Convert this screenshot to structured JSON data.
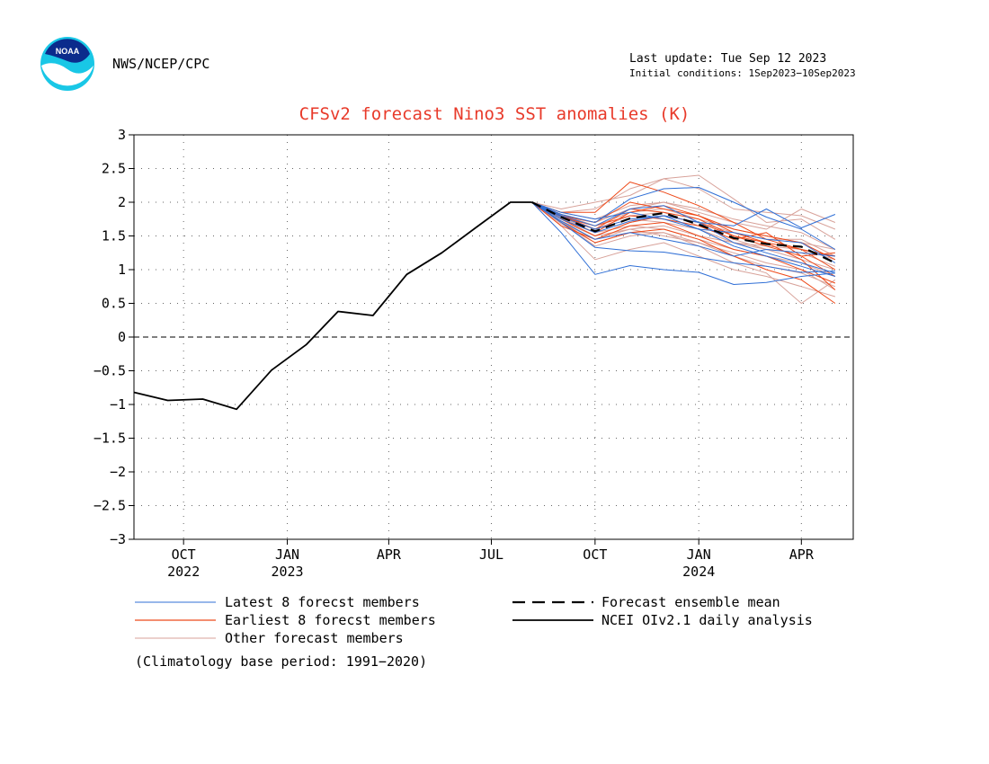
{
  "header": {
    "org": "NWS/NCEP/CPC",
    "last_update": "Last update: Tue Sep 12 2023",
    "initial_conditions": "Initial conditions: 1Sep2023−10Sep2023",
    "logo_text": "NOAA"
  },
  "footer": {
    "climatology": "(Climatology base period: 1991−2020)"
  },
  "colors": {
    "title": "#e83a2a",
    "latest": "#2f6fd6",
    "earliest": "#ee4a1a",
    "other": "#d8a29a",
    "analysis": "#000000",
    "mean": "#000000"
  },
  "chart_data": {
    "type": "line",
    "title": "CFSv2 forecast Nino3 SST anomalies (K)",
    "xlabel": "",
    "ylabel": "",
    "ylim": [
      -3,
      3
    ],
    "yticks": [
      "3",
      "2.5",
      "2",
      "1.5",
      "1",
      "0.5",
      "0",
      "−0.5",
      "−1",
      "−1.5",
      "−2",
      "−2.5",
      "−3"
    ],
    "xticks": [
      {
        "month": "2022-10",
        "label": "OCT",
        "year": "2022"
      },
      {
        "month": "2023-01",
        "label": "JAN",
        "year": "2023"
      },
      {
        "month": "2023-04",
        "label": "APR",
        "year": ""
      },
      {
        "month": "2023-07",
        "label": "JUL",
        "year": ""
      },
      {
        "month": "2023-10",
        "label": "OCT",
        "year": ""
      },
      {
        "month": "2024-01",
        "label": "JAN",
        "year": "2024"
      },
      {
        "month": "2024-04",
        "label": "APR",
        "year": ""
      }
    ],
    "xrange": [
      "2022-09-01",
      "2024-05-31"
    ],
    "grid": true,
    "zero_line": true,
    "legend": [
      {
        "label": "Latest 8 forecst members",
        "style": "latest"
      },
      {
        "label": "Earliest 8 forecst members",
        "style": "earliest"
      },
      {
        "label": "Other forecast members",
        "style": "other"
      },
      {
        "label": "Forecast ensemble mean",
        "style": "mean"
      },
      {
        "label": "NCEI OIv2.1 daily analysis",
        "style": "analysis"
      }
    ],
    "analysis": {
      "name": "NCEI OIv2.1 daily analysis",
      "x": [
        "2022-09-01",
        "2022-10-01",
        "2022-11-01",
        "2022-12-01",
        "2023-01-01",
        "2023-02-01",
        "2023-03-01",
        "2023-04-01",
        "2023-05-01",
        "2023-06-01",
        "2023-07-01",
        "2023-08-01",
        "2023-08-20"
      ],
      "values": [
        -0.82,
        -0.94,
        -0.92,
        -1.07,
        -0.49,
        -0.11,
        0.38,
        0.32,
        0.93,
        1.25,
        1.62,
        2.0,
        2.0
      ]
    },
    "forecast_x": [
      "2023-08-20",
      "2023-09-15",
      "2023-10-15",
      "2023-11-15",
      "2023-12-15",
      "2024-01-15",
      "2024-02-15",
      "2024-03-15",
      "2024-04-15",
      "2024-05-15"
    ],
    "ensemble_mean": {
      "name": "Forecast ensemble mean",
      "values": [
        2.0,
        1.78,
        1.57,
        1.76,
        1.84,
        1.67,
        1.47,
        1.38,
        1.34,
        1.1
      ]
    },
    "latest_members": [
      [
        2.0,
        1.55,
        0.93,
        1.06,
        1.0,
        0.96,
        0.78,
        0.81,
        0.9,
        0.95
      ],
      [
        2.0,
        1.7,
        1.33,
        1.28,
        1.26,
        1.18,
        1.1,
        1.05,
        0.96,
        0.98
      ],
      [
        2.0,
        1.75,
        1.55,
        1.72,
        1.8,
        1.7,
        1.65,
        1.9,
        1.62,
        1.82
      ],
      [
        2.0,
        1.82,
        1.7,
        2.05,
        2.2,
        2.22,
        2.0,
        1.78,
        1.6,
        1.3
      ],
      [
        2.0,
        1.8,
        1.65,
        1.9,
        1.95,
        1.7,
        1.4,
        1.25,
        1.1,
        0.95
      ],
      [
        2.0,
        1.78,
        1.6,
        1.75,
        1.8,
        1.6,
        1.35,
        1.2,
        1.05,
        0.9
      ],
      [
        2.0,
        1.85,
        1.75,
        1.85,
        1.75,
        1.6,
        1.55,
        1.45,
        1.4,
        1.1
      ],
      [
        2.0,
        1.72,
        1.45,
        1.55,
        1.45,
        1.35,
        1.2,
        1.3,
        1.25,
        1.2
      ]
    ],
    "earliest_members": [
      [
        2.0,
        1.85,
        1.85,
        2.3,
        2.15,
        1.95,
        1.7,
        1.45,
        1.3,
        1.2
      ],
      [
        2.0,
        1.8,
        1.6,
        1.9,
        1.85,
        1.75,
        1.5,
        1.35,
        1.2,
        0.9
      ],
      [
        2.0,
        1.75,
        1.5,
        1.7,
        1.8,
        1.7,
        1.5,
        1.4,
        1.15,
        0.7
      ],
      [
        2.0,
        1.7,
        1.4,
        1.55,
        1.6,
        1.45,
        1.2,
        1.0,
        0.85,
        0.5
      ],
      [
        2.0,
        1.8,
        1.7,
        2.0,
        1.9,
        1.8,
        1.6,
        1.5,
        1.4,
        1.15
      ],
      [
        2.0,
        1.75,
        1.55,
        1.85,
        1.95,
        1.8,
        1.55,
        1.4,
        1.3,
        1.0
      ],
      [
        2.0,
        1.65,
        1.45,
        1.65,
        1.7,
        1.5,
        1.3,
        1.2,
        1.0,
        0.8
      ],
      [
        2.0,
        1.78,
        1.65,
        1.8,
        1.75,
        1.65,
        1.45,
        1.55,
        1.2,
        1.25
      ]
    ],
    "other_members": [
      [
        2.0,
        1.9,
        2.0,
        2.1,
        2.35,
        2.4,
        2.05,
        1.7,
        1.75,
        1.45
      ],
      [
        2.0,
        1.85,
        1.9,
        2.2,
        2.35,
        2.2,
        1.9,
        1.85,
        1.8,
        1.6
      ],
      [
        2.0,
        1.8,
        1.7,
        1.9,
        2.0,
        1.85,
        1.7,
        1.6,
        1.9,
        1.7
      ],
      [
        2.0,
        1.7,
        1.35,
        1.5,
        1.55,
        1.35,
        1.1,
        0.95,
        0.5,
        0.85
      ],
      [
        2.0,
        1.65,
        1.15,
        1.3,
        1.4,
        1.2,
        1.0,
        0.9,
        0.75,
        0.6
      ],
      [
        2.0,
        1.75,
        1.5,
        1.6,
        1.5,
        1.4,
        1.25,
        1.1,
        1.0,
        0.7
      ],
      [
        2.0,
        1.8,
        1.6,
        1.75,
        1.7,
        1.6,
        1.4,
        1.3,
        1.25,
        1.05
      ],
      [
        2.0,
        1.85,
        1.75,
        1.95,
        2.0,
        1.9,
        1.75,
        1.65,
        1.55,
        1.3
      ],
      [
        2.0,
        1.72,
        1.5,
        1.7,
        1.8,
        1.7,
        1.55,
        1.45,
        1.45,
        1.2
      ],
      [
        2.0,
        1.78,
        1.55,
        1.65,
        1.6,
        1.45,
        1.3,
        1.2,
        1.1,
        0.9
      ],
      [
        2.0,
        1.82,
        1.65,
        1.85,
        1.9,
        1.75,
        1.6,
        1.5,
        1.4,
        1.3
      ],
      [
        2.0,
        1.7,
        1.45,
        1.6,
        1.65,
        1.5,
        1.4,
        1.35,
        1.3,
        1.15
      ],
      [
        2.0,
        1.76,
        1.6,
        1.8,
        1.85,
        1.65,
        1.45,
        1.3,
        1.15,
        1.0
      ],
      [
        2.0,
        1.68,
        1.4,
        1.55,
        1.55,
        1.4,
        1.2,
        1.05,
        0.95,
        0.75
      ]
    ]
  }
}
